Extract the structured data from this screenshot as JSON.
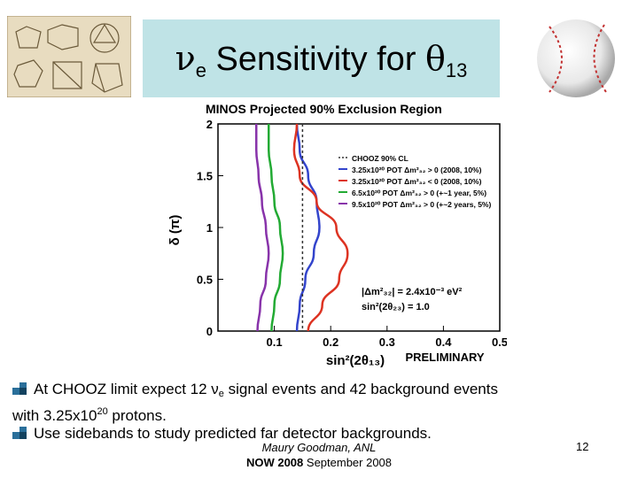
{
  "title": {
    "main": "ν",
    "sub": "e",
    "middle": " Sensitivity for ",
    "theta": "θ",
    "theta_sub": "13"
  },
  "images": {
    "left": "polyhedra-sketches-icon",
    "right": "baseball-icon"
  },
  "colors": {
    "title_box": "#bfe3e6",
    "chooz": "#333333",
    "blue": "#3344cc",
    "red": "#dd3322",
    "green": "#22aa33",
    "purple": "#8833aa",
    "bullet": "#2a6f9a"
  },
  "chart_data": {
    "type": "line",
    "title": "MINOS Projected 90% Exclusion Region",
    "xlabel": "sin²(2θ₁₃)",
    "ylabel": "δ (π)",
    "xlim": [
      0,
      0.5
    ],
    "ylim": [
      0,
      2
    ],
    "xticks": [
      "0.1",
      "0.2",
      "0.3",
      "0.4",
      "0.5"
    ],
    "yticks": [
      "0",
      "0.5",
      "1",
      "1.5",
      "2"
    ],
    "grid": false,
    "legend_position": "top-right",
    "legend_title": "CHOOZ 90% CL",
    "annotations": [
      "|Δm²₃₂| = 2.4x10⁻³ eV²",
      "sin²(2θ₂₃) = 1.0",
      "PRELIMINARY"
    ],
    "series": [
      {
        "name": "3.25x10²⁰ POT Δm²₃₂ > 0 (2008, 10%)",
        "color": "#3344cc",
        "x": [
          0.14,
          0.145,
          0.155,
          0.17,
          0.18,
          0.175,
          0.16,
          0.145,
          0.14
        ],
        "y": [
          0,
          0.25,
          0.5,
          0.75,
          1.0,
          1.25,
          1.5,
          1.75,
          2.0
        ]
      },
      {
        "name": "3.25x10²⁰ POT Δm²₃₂ < 0 (2008, 10%)",
        "color": "#dd3322",
        "x": [
          0.16,
          0.185,
          0.215,
          0.23,
          0.21,
          0.175,
          0.145,
          0.135,
          0.14
        ],
        "y": [
          0,
          0.25,
          0.5,
          0.75,
          1.0,
          1.25,
          1.5,
          1.75,
          2.0
        ]
      },
      {
        "name": "6.5x10²⁰ POT Δm²₃₂ > 0 (+~1 year, 5%)",
        "color": "#22aa33",
        "x": [
          0.095,
          0.1,
          0.11,
          0.115,
          0.11,
          0.1,
          0.095,
          0.09,
          0.09
        ],
        "y": [
          0,
          0.25,
          0.5,
          0.75,
          1.0,
          1.25,
          1.5,
          1.75,
          2.0
        ]
      },
      {
        "name": "9.5x10²⁰ POT Δm²₃₂ > 0 (+~2 years, 5%)",
        "color": "#8833aa",
        "x": [
          0.07,
          0.075,
          0.085,
          0.09,
          0.085,
          0.078,
          0.072,
          0.068,
          0.068
        ],
        "y": [
          0,
          0.25,
          0.5,
          0.75,
          1.0,
          1.25,
          1.5,
          1.75,
          2.0
        ]
      }
    ],
    "reference_line": {
      "name": "CHOOZ 90% CL",
      "x": 0.15,
      "color": "#333333"
    }
  },
  "bullets": [
    {
      "text": "At CHOOZ limit expect 12 ν",
      "sub": "e",
      "text2": " signal events and 42 background events",
      "line2a": "with 3.25x10",
      "sup": "20",
      "line2b": " protons."
    },
    {
      "text": "Use sidebands to study predicted far detector backgrounds."
    }
  ],
  "footer": {
    "author": "Maury Goodman, ANL",
    "event_bold": "NOW 2008",
    "event_rest": " September 2008",
    "page": "12"
  }
}
